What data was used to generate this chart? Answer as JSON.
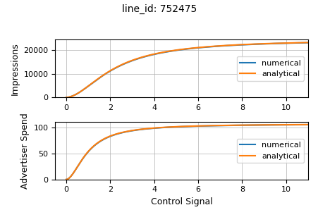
{
  "title": "line_id: 752475",
  "xlabel": "Control Signal",
  "ylabel_top": "Impressions",
  "ylabel_bottom": "Advertiser Spend",
  "x_min": -0.5,
  "x_max": 11,
  "legend_labels": [
    "numerical",
    "analytical"
  ],
  "color_numerical": "#1f77b4",
  "color_analytical": "#ff7f0e",
  "impressions_max": 24500,
  "impressions_k": 2.2,
  "impressions_n": 1.8,
  "spend_max": 107,
  "spend_k": 1.0,
  "spend_n": 1.8,
  "yticks_top": [
    0,
    10000,
    20000
  ],
  "yticks_bottom": [
    0,
    50,
    100
  ],
  "grid_color": "#b0b0b0",
  "line_width": 1.5,
  "figsize": [
    4.52,
    3.08
  ],
  "dpi": 100
}
